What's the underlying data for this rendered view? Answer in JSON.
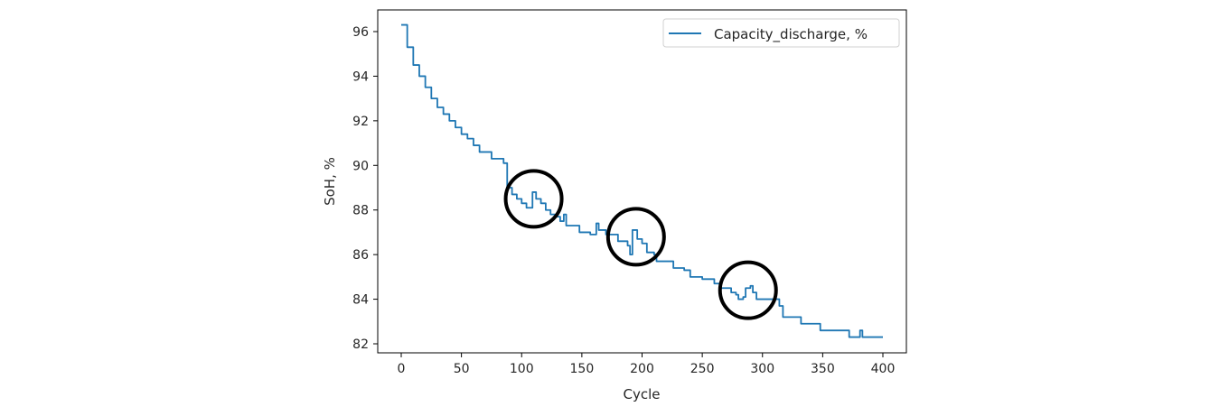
{
  "chart_data": {
    "type": "line",
    "title": "",
    "xlabel": "Cycle",
    "ylabel": "SoH, %",
    "xlim": [
      -20,
      420
    ],
    "ylim": [
      81.6,
      97.0
    ],
    "xticks": [
      0,
      50,
      100,
      150,
      200,
      250,
      300,
      350,
      400
    ],
    "yticks": [
      82,
      84,
      86,
      88,
      90,
      92,
      94,
      96
    ],
    "grid": false,
    "legend_position": "top-right",
    "series": [
      {
        "name": "Capacity_discharge, %",
        "color": "#1f77b4",
        "points": [
          [
            0,
            96.3
          ],
          [
            5,
            95.3
          ],
          [
            10,
            94.5
          ],
          [
            15,
            94.0
          ],
          [
            20,
            93.5
          ],
          [
            25,
            93.0
          ],
          [
            30,
            92.6
          ],
          [
            35,
            92.3
          ],
          [
            40,
            92.0
          ],
          [
            45,
            91.7
          ],
          [
            50,
            91.4
          ],
          [
            55,
            91.2
          ],
          [
            60,
            90.9
          ],
          [
            65,
            90.6
          ],
          [
            70,
            90.6
          ],
          [
            75,
            90.3
          ],
          [
            82,
            90.3
          ],
          [
            85,
            90.1
          ],
          [
            88,
            89.0
          ],
          [
            92,
            88.7
          ],
          [
            96,
            88.5
          ],
          [
            100,
            88.3
          ],
          [
            104,
            88.1
          ],
          [
            107,
            88.1
          ],
          [
            109,
            88.8
          ],
          [
            112,
            88.5
          ],
          [
            116,
            88.3
          ],
          [
            120,
            88.0
          ],
          [
            124,
            87.8
          ],
          [
            128,
            87.7
          ],
          [
            132,
            87.5
          ],
          [
            135,
            87.8
          ],
          [
            137,
            87.3
          ],
          [
            145,
            87.3
          ],
          [
            148,
            87.0
          ],
          [
            155,
            87.0
          ],
          [
            157,
            86.9
          ],
          [
            161,
            86.9
          ],
          [
            162,
            87.4
          ],
          [
            164,
            87.1
          ],
          [
            168,
            87.1
          ],
          [
            170,
            86.9
          ],
          [
            180,
            86.6
          ],
          [
            188,
            86.4
          ],
          [
            190,
            86.0
          ],
          [
            192,
            87.1
          ],
          [
            196,
            86.7
          ],
          [
            200,
            86.5
          ],
          [
            204,
            86.1
          ],
          [
            210,
            86.0
          ],
          [
            212,
            85.7
          ],
          [
            222,
            85.7
          ],
          [
            226,
            85.4
          ],
          [
            235,
            85.3
          ],
          [
            240,
            85.0
          ],
          [
            250,
            84.9
          ],
          [
            258,
            84.9
          ],
          [
            260,
            84.7
          ],
          [
            265,
            84.5
          ],
          [
            270,
            84.5
          ],
          [
            274,
            84.3
          ],
          [
            278,
            84.2
          ],
          [
            280,
            84.0
          ],
          [
            284,
            84.1
          ],
          [
            286,
            84.5
          ],
          [
            290,
            84.6
          ],
          [
            292,
            84.3
          ],
          [
            295,
            84.0
          ],
          [
            310,
            84.0
          ],
          [
            314,
            83.7
          ],
          [
            317,
            83.2
          ],
          [
            330,
            83.2
          ],
          [
            332,
            82.9
          ],
          [
            345,
            82.9
          ],
          [
            348,
            82.6
          ],
          [
            370,
            82.6
          ],
          [
            372,
            82.3
          ],
          [
            380,
            82.3
          ],
          [
            381,
            82.6
          ],
          [
            383,
            82.3
          ],
          [
            400,
            82.3
          ]
        ]
      }
    ],
    "annotations": [
      {
        "shape": "circle",
        "color": "#000000",
        "center": [
          110,
          88.5
        ]
      },
      {
        "shape": "circle",
        "color": "#000000",
        "center": [
          195,
          86.8
        ]
      },
      {
        "shape": "circle",
        "color": "#000000",
        "center": [
          288,
          84.4
        ]
      }
    ]
  }
}
